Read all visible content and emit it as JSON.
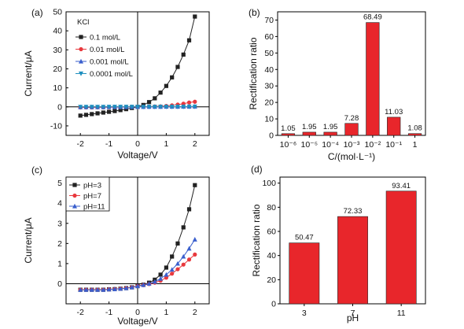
{
  "chart_data": [
    {
      "panel": "(a)",
      "type": "line",
      "xlabel": "Voltage/V",
      "ylabel": "Current/μA",
      "xlim": [
        -2.5,
        2.5
      ],
      "ylim": [
        -15,
        50
      ],
      "xticks": [
        "-2",
        "-1",
        "0",
        "1",
        "2"
      ],
      "yticks": [
        "-10",
        "0",
        "10",
        "20",
        "30",
        "40",
        "50"
      ],
      "legend_title": "KCl",
      "legend_position": "top-left",
      "x": [
        -2.0,
        -1.8,
        -1.6,
        -1.4,
        -1.2,
        -1.0,
        -0.8,
        -0.6,
        -0.4,
        -0.2,
        0.0,
        0.2,
        0.4,
        0.6,
        0.8,
        1.0,
        1.2,
        1.4,
        1.6,
        1.8,
        2.0
      ],
      "series": [
        {
          "name": "0.1 mol/L",
          "color": "#222222",
          "marker": "square",
          "values": [
            -4.6,
            -4.2,
            -3.8,
            -3.4,
            -3.0,
            -2.6,
            -2.2,
            -1.7,
            -1.2,
            -0.6,
            0.0,
            1.0,
            2.5,
            4.5,
            7.5,
            11.0,
            15.5,
            21.0,
            27.5,
            35.0,
            47.5
          ]
        },
        {
          "name": "0.01 mol/L",
          "color": "#e8383d",
          "marker": "circle",
          "values": [
            -0.3,
            -0.3,
            -0.3,
            -0.25,
            -0.25,
            -0.2,
            -0.2,
            -0.15,
            -0.1,
            -0.05,
            0.0,
            0.05,
            0.1,
            0.2,
            0.3,
            0.5,
            0.8,
            1.2,
            1.7,
            2.3,
            2.7
          ]
        },
        {
          "name": "0.001 mol/L",
          "color": "#3a5fcd",
          "marker": "triangle",
          "values": [
            -0.1,
            -0.1,
            -0.1,
            -0.1,
            -0.1,
            -0.05,
            -0.05,
            -0.05,
            -0.05,
            0.0,
            0.0,
            0.0,
            0.05,
            0.05,
            0.05,
            0.1,
            0.1,
            0.1,
            0.15,
            0.15,
            0.2
          ]
        },
        {
          "name": "0.0001 mol/L",
          "color": "#1f8fbf",
          "marker": "triangle-down",
          "values": [
            -0.05,
            -0.05,
            -0.05,
            -0.05,
            -0.05,
            0.0,
            0.0,
            0.0,
            0.0,
            0.0,
            0.0,
            0.0,
            0.0,
            0.0,
            0.05,
            0.05,
            0.05,
            0.05,
            0.05,
            0.1,
            0.1
          ]
        }
      ]
    },
    {
      "panel": "(b)",
      "type": "bar",
      "xlabel": "C/(mol·L⁻¹)",
      "ylabel": "Rectification ratio",
      "ylim": [
        0,
        75
      ],
      "yticks": [
        "0",
        "10",
        "20",
        "30",
        "40",
        "50",
        "60",
        "70"
      ],
      "categories": [
        "10⁻⁶",
        "10⁻⁵",
        "10⁻⁴",
        "10⁻³",
        "10⁻²",
        "10⁻¹",
        "1"
      ],
      "values": [
        1.05,
        1.95,
        1.95,
        7.28,
        68.49,
        11.03,
        1.08
      ],
      "labels": [
        "1.05",
        "1.95",
        "1.95",
        "7.28",
        "68.49",
        "11.03",
        "1.08"
      ],
      "color": "#e8262b"
    },
    {
      "panel": "(c)",
      "type": "line",
      "xlabel": "Voltage/V",
      "ylabel": "Current/μA",
      "xlim": [
        -2.5,
        2.5
      ],
      "ylim": [
        -1.0,
        5.3
      ],
      "xticks": [
        "-2",
        "-1",
        "0",
        "1",
        "2"
      ],
      "yticks": [
        "0",
        "1",
        "2",
        "3",
        "4",
        "5"
      ],
      "legend_position": "top-left",
      "x": [
        -2.0,
        -1.8,
        -1.6,
        -1.4,
        -1.2,
        -1.0,
        -0.8,
        -0.6,
        -0.4,
        -0.2,
        0.0,
        0.2,
        0.4,
        0.6,
        0.8,
        1.0,
        1.2,
        1.4,
        1.6,
        1.8,
        2.0
      ],
      "series": [
        {
          "name": "pH=3",
          "color": "#222222",
          "marker": "square",
          "values": [
            -0.3,
            -0.3,
            -0.3,
            -0.3,
            -0.3,
            -0.28,
            -0.27,
            -0.25,
            -0.22,
            -0.18,
            -0.12,
            -0.05,
            0.05,
            0.2,
            0.45,
            0.8,
            1.35,
            2.0,
            2.8,
            3.7,
            4.9
          ]
        },
        {
          "name": "pH=7",
          "color": "#e8383d",
          "marker": "circle",
          "values": [
            -0.3,
            -0.3,
            -0.3,
            -0.3,
            -0.3,
            -0.28,
            -0.27,
            -0.25,
            -0.22,
            -0.18,
            -0.12,
            -0.07,
            -0.02,
            0.05,
            0.15,
            0.3,
            0.5,
            0.72,
            0.95,
            1.2,
            1.45
          ]
        },
        {
          "name": "pH=11",
          "color": "#3a5fcd",
          "marker": "triangle",
          "values": [
            -0.3,
            -0.3,
            -0.3,
            -0.3,
            -0.3,
            -0.28,
            -0.27,
            -0.25,
            -0.22,
            -0.18,
            -0.12,
            -0.06,
            0.0,
            0.1,
            0.25,
            0.45,
            0.7,
            1.0,
            1.35,
            1.75,
            2.2
          ]
        }
      ]
    },
    {
      "panel": "(d)",
      "type": "bar",
      "xlabel": "pH",
      "ylabel": "Rectification ratio",
      "ylim": [
        0,
        105
      ],
      "yticks": [
        "0",
        "20",
        "40",
        "60",
        "80",
        "100"
      ],
      "categories": [
        "3",
        "7",
        "11"
      ],
      "values": [
        50.47,
        72.33,
        93.41
      ],
      "labels": [
        "50.47",
        "72.33",
        "93.41"
      ],
      "color": "#e8262b"
    }
  ]
}
